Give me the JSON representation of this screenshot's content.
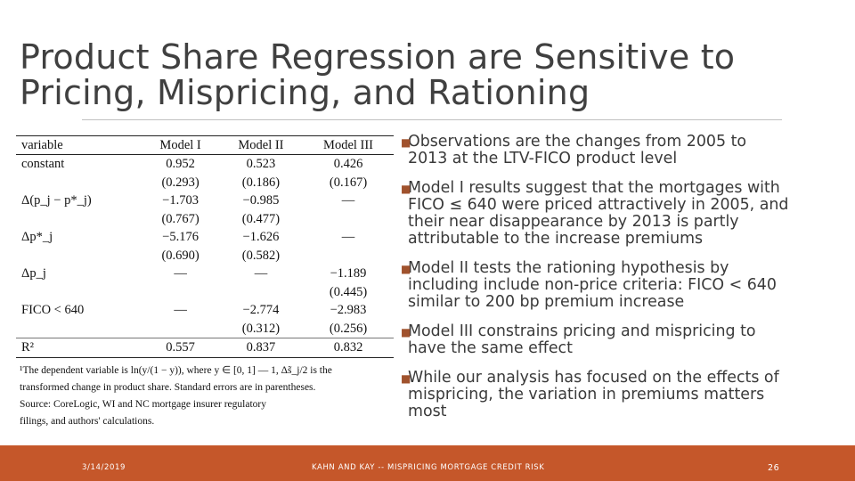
{
  "slide": {
    "title_lines": [
      "Product Share Regression are Sensitive to",
      "Pricing, Mispricing, and Rationing"
    ]
  },
  "table": {
    "headers": [
      "variable",
      "Model I",
      "Model II",
      "Model III"
    ],
    "rows": [
      [
        "constant",
        "0.952",
        "0.523",
        "0.426"
      ],
      [
        "",
        "(0.293)",
        "(0.186)",
        "(0.167)"
      ],
      [
        "Δ(p_j − p*_j)",
        "−1.703",
        "−0.985",
        "—"
      ],
      [
        "",
        "(0.767)",
        "(0.477)",
        ""
      ],
      [
        "Δp*_j",
        "−5.176",
        "−1.626",
        "—"
      ],
      [
        "",
        "(0.690)",
        "(0.582)",
        ""
      ],
      [
        "Δp_j",
        "—",
        "—",
        "−1.189"
      ],
      [
        "",
        "",
        "",
        "(0.445)"
      ],
      [
        "FICO < 640",
        "—",
        "−2.774",
        "−2.983"
      ],
      [
        "",
        "",
        "(0.312)",
        "(0.256)"
      ]
    ],
    "last_row": [
      "R²",
      "0.557",
      "0.837",
      "0.832"
    ],
    "notes": [
      "¹The dependent variable is ln(y/(1 − y)), where y ∈ [0, 1] — 1, Δs̃_j/2 is the",
      "transformed change in product share. Standard errors are in parentheses.",
      "Source: CoreLogic, WI and NC mortgage insurer regulatory",
      "filings, and authors' calculations."
    ]
  },
  "bullets": [
    "Observations are the changes from 2005 to\n2013 at the LTV-FICO product level",
    "Model I results suggest that the mortgages with\nFICO ≤ 640 were priced attractively in 2005, and\ntheir near disappearance by 2013 is partly\nattributable to the increase premiums",
    "Model II tests the rationing hypothesis by\nincluding include non-price criteria: FICO < 640\nsimilar to 200 bp premium increase",
    "Model III constrains pricing and mispricing to\nhave the same effect",
    "While our analysis has focused on the effects of\nmispricing, the variation in premiums matters\nmost"
  ],
  "footer": {
    "date": "3/14/2019",
    "center": "KAHN AND KAY -- MISPRICING MORTGAGE CREDIT RISK",
    "page": "26"
  },
  "colors": {
    "footer_bar": "#c5572a",
    "title_text": "#404040",
    "bullet_mark": "#a0522d"
  }
}
